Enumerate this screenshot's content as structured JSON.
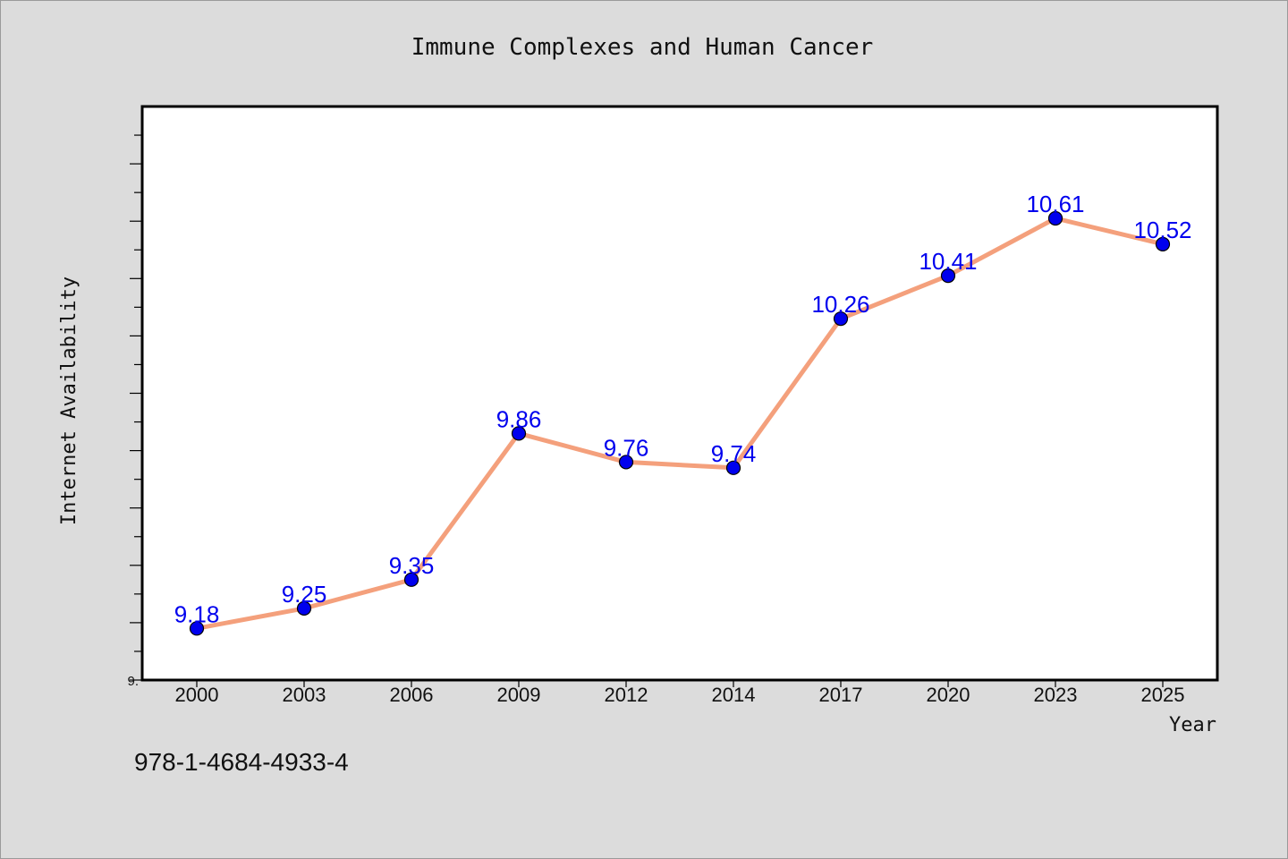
{
  "chart_data": {
    "type": "line",
    "title": "Immune Complexes and Human Cancer",
    "xlabel": "Year",
    "ylabel": "Internet Availability",
    "categories": [
      "2000",
      "2003",
      "2006",
      "2009",
      "2012",
      "2014",
      "2017",
      "2020",
      "2023",
      "2025"
    ],
    "series": [
      {
        "values": [
          9.18,
          9.25,
          9.35,
          9.86,
          9.76,
          9.74,
          10.26,
          10.41,
          10.61,
          10.52
        ]
      }
    ],
    "data_labels": [
      "9.18",
      "9.25",
      "9.35",
      "9.86",
      "9.76",
      "9.74",
      "10.26",
      "10.41",
      "10.61",
      "10.52"
    ],
    "ylim": [
      9.0,
      11.0
    ],
    "y_ticks_labeled": [
      "9."
    ],
    "grid": false,
    "legend": "none",
    "colors": {
      "line": "#f4a07c",
      "marker": "#0000ee",
      "data_label": "#0000ee",
      "background": "#dcdcdc",
      "plot_background": "#ffffff"
    }
  },
  "footer": {
    "isbn": "978-1-4684-4933-4"
  }
}
